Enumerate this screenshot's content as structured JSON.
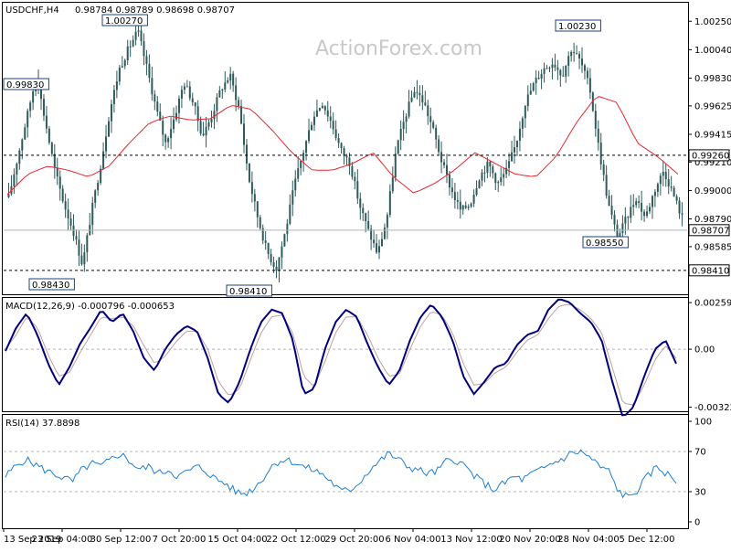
{
  "chart_data": {
    "type": "candlestick",
    "symbol_label": "USDCHF,H4",
    "ohlc_label": "0.98784 0.98789 0.98698 0.98707",
    "watermark": "ActionForex.com",
    "price_axis": {
      "range": [
        0.9824,
        1.0038
      ],
      "ticks": [
        "1.00250",
        "1.00040",
        "0.99830",
        "0.99625",
        "0.99415",
        "0.99210",
        "0.99000",
        "0.98790",
        "0.98585"
      ],
      "tick_values": [
        1.0025,
        1.0004,
        0.9983,
        0.99625,
        0.99415,
        0.9921,
        0.99,
        0.9879,
        0.98585
      ],
      "markers": [
        {
          "label": "0.99260",
          "value": 0.9926,
          "style": "dashed"
        },
        {
          "label": "0.98707",
          "value": 0.98707,
          "style": "current"
        },
        {
          "label": "0.98410",
          "value": 0.9841,
          "style": "dashed"
        }
      ]
    },
    "annotations": [
      {
        "label": "1.00270",
        "value": 1.0027
      },
      {
        "label": "0.99830",
        "value": 0.9983
      },
      {
        "label": "0.98430",
        "value": 0.9843
      },
      {
        "label": "0.98410",
        "value": 0.9841
      },
      {
        "label": "1.00230",
        "value": 1.0023
      },
      {
        "label": "0.98550",
        "value": 0.9855
      }
    ],
    "x_axis": {
      "labels": [
        "13 Sep 2019",
        "23 Sep 04:00",
        "30 Sep 12:00",
        "7 Oct 20:00",
        "15 Oct 04:00",
        "22 Oct 12:00",
        "29 Oct 20:00",
        "6 Nov 04:00",
        "13 Nov 12:00",
        "20 Nov 20:00",
        "28 Nov 04:00",
        "5 Dec 12:00"
      ]
    },
    "price_anchors": [
      0.9895,
      0.9925,
      0.9955,
      0.9985,
      0.995,
      0.9915,
      0.989,
      0.987,
      0.9845,
      0.9885,
      0.992,
      0.996,
      0.999,
      1.0005,
      1.0018,
      0.999,
      0.996,
      0.9935,
      0.9955,
      0.998,
      0.9965,
      0.994,
      0.9955,
      0.9975,
      0.9985,
      0.996,
      0.991,
      0.988,
      0.9855,
      0.9842,
      0.987,
      0.9905,
      0.993,
      0.9955,
      0.9965,
      0.995,
      0.993,
      0.992,
      0.989,
      0.987,
      0.9853,
      0.988,
      0.993,
      0.9955,
      0.9975,
      0.9965,
      0.9945,
      0.992,
      0.99,
      0.9885,
      0.989,
      0.991,
      0.992,
      0.9905,
      0.9915,
      0.9935,
      0.9965,
      0.998,
      0.999,
      0.9995,
      0.9985,
      1.0005,
      0.9995,
      0.9975,
      0.993,
      0.989,
      0.9865,
      0.988,
      0.9895,
      0.988,
      0.99,
      0.9915,
      0.9898,
      0.988
    ],
    "ma": {
      "color": "#e8262d",
      "anchors": [
        0.9897,
        0.9912,
        0.9918,
        0.9915,
        0.991,
        0.9918,
        0.9935,
        0.995,
        0.9955,
        0.9952,
        0.9953,
        0.9963,
        0.996,
        0.9945,
        0.9928,
        0.9915,
        0.9915,
        0.992,
        0.9928,
        0.991,
        0.9898,
        0.9905,
        0.9915,
        0.9928,
        0.992,
        0.9912,
        0.991,
        0.9925,
        0.995,
        0.997,
        0.9965,
        0.9935,
        0.9925,
        0.9912
      ]
    },
    "macd": {
      "label": "MACD(12,26,9) -0.000796 -0.000653",
      "range": [
        -0.0034,
        0.0028
      ],
      "ticks": [
        "0.00259",
        "0.00",
        "-0.003221"
      ],
      "tick_values": [
        0.00259,
        0.0,
        -0.003221
      ],
      "main_color": "#00007f",
      "signal_color": "#c0a0a0",
      "main_anchors": [
        -0.0001,
        0.0012,
        0.002,
        0.0008,
        -0.0008,
        -0.002,
        -0.001,
        0.0003,
        0.0012,
        0.0022,
        0.0015,
        0.002,
        0.001,
        -0.0005,
        -0.0012,
        0.0,
        0.0008,
        0.0013,
        0.001,
        -0.0005,
        -0.0025,
        -0.003,
        -0.0018,
        0.0,
        0.0015,
        0.0022,
        0.002,
        0.0005,
        -0.0025,
        -0.0022,
        0.0,
        0.0015,
        0.0022,
        0.0018,
        0.0003,
        -0.001,
        -0.002,
        -0.0012,
        0.0005,
        0.0018,
        0.0025,
        0.0018,
        0.0005,
        -0.0015,
        -0.0025,
        -0.0018,
        -0.001,
        -0.0008,
        0.0002,
        0.0008,
        0.001,
        0.0022,
        0.0028,
        0.0026,
        0.002,
        0.0015,
        0.0005,
        -0.0018,
        -0.0038,
        -0.0032,
        -0.0015,
        0.0,
        0.0005,
        -0.0008
      ],
      "signal_anchors": [
        0.0,
        0.0008,
        0.0018,
        0.0012,
        -0.0003,
        -0.0015,
        -0.0013,
        -0.0002,
        0.0008,
        0.0018,
        0.0017,
        0.0018,
        0.0013,
        0.0002,
        -0.0008,
        -0.0004,
        0.0004,
        0.001,
        0.001,
        0.0,
        -0.0018,
        -0.0026,
        -0.0022,
        -0.0006,
        0.0009,
        0.0018,
        0.0019,
        0.0009,
        -0.0015,
        -0.0021,
        -0.0007,
        0.0009,
        0.0018,
        0.0018,
        0.0008,
        -0.0005,
        -0.0015,
        -0.0014,
        0.0,
        0.0013,
        0.0021,
        0.0019,
        0.0009,
        -0.0008,
        -0.002,
        -0.0019,
        -0.0013,
        -0.001,
        -0.0002,
        0.0005,
        0.0008,
        0.0017,
        0.0024,
        0.0025,
        0.0022,
        0.0017,
        0.0009,
        -0.001,
        -0.003,
        -0.0031,
        -0.002,
        -0.0006,
        0.0002,
        -0.0005
      ]
    },
    "rsi": {
      "label": "RSI(14) 37.8898",
      "range": [
        0,
        100
      ],
      "ticks": [
        "100",
        "70",
        "30",
        "0"
      ],
      "tick_values": [
        100,
        70,
        30,
        0
      ],
      "color": "#1e7fd2",
      "anchors": [
        45,
        55,
        62,
        58,
        52,
        48,
        44,
        40,
        52,
        58,
        55,
        62,
        68,
        60,
        52,
        55,
        48,
        52,
        45,
        50,
        55,
        50,
        42,
        38,
        30,
        28,
        34,
        45,
        58,
        62,
        60,
        55,
        52,
        48,
        40,
        30,
        32,
        40,
        52,
        60,
        68,
        62,
        55,
        52,
        48,
        50,
        60,
        62,
        55,
        45,
        38,
        32,
        38,
        45,
        42,
        48,
        52,
        58,
        62,
        68,
        70,
        64,
        55,
        50,
        30,
        24,
        32,
        45,
        55,
        48,
        40
      ]
    }
  }
}
